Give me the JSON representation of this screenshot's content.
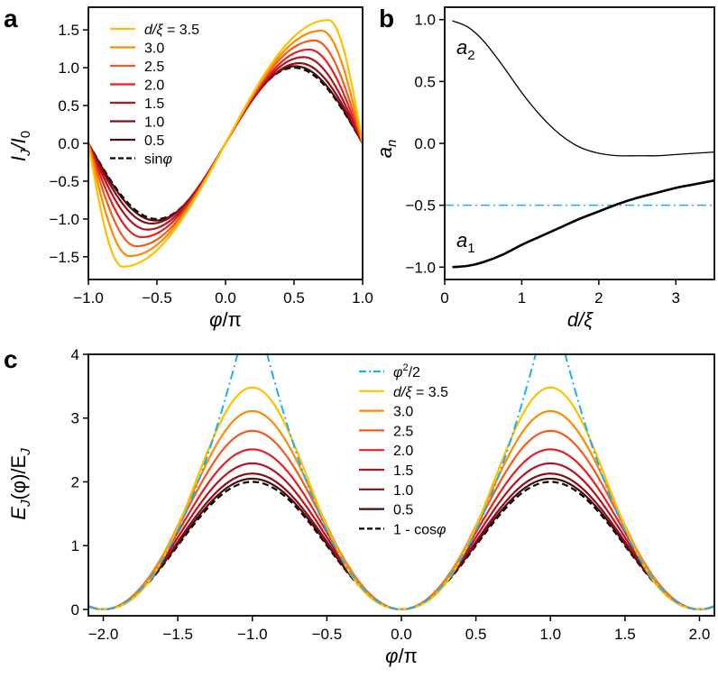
{
  "chart_data": [
    {
      "panel_label": "a",
      "type": "line",
      "xlabel": {
        "main": "φ",
        "rest": "/π"
      },
      "ylabel": {
        "main": "I",
        "sub": "J",
        "mid": "/I",
        "sub2": "0"
      },
      "xlim": [
        -1.0,
        1.0
      ],
      "ylim": [
        -1.8,
        1.8
      ],
      "xticks": [
        "−1.0",
        "−0.5",
        "0.0",
        "0.5",
        "1.0"
      ],
      "yticks": [
        "−1.5",
        "−1.0",
        "−0.5",
        "0.0",
        "0.5",
        "1.0",
        "1.5"
      ],
      "legend": {
        "placement": "upper-left",
        "ratio_label": "d/ξ",
        "ratio_eq": " = 3.5",
        "sin_label": "sinφ"
      },
      "series": [
        {
          "name": "3.5",
          "color": "#ffc000",
          "d": 3.5,
          "peak": 1.63,
          "peak_phase": 0.75
        },
        {
          "name": "3.0",
          "color": "#ff8a00",
          "d": 3.0,
          "peak": 1.49,
          "peak_phase": 0.7
        },
        {
          "name": "2.5",
          "color": "#f25a1e",
          "d": 2.5,
          "peak": 1.36,
          "peak_phase": 0.65
        },
        {
          "name": "2.0",
          "color": "#e3221e",
          "d": 2.0,
          "peak": 1.24,
          "peak_phase": 0.61
        },
        {
          "name": "1.5",
          "color": "#b8121e",
          "d": 1.5,
          "peak": 1.14,
          "peak_phase": 0.57
        },
        {
          "name": "1.0",
          "color": "#8a0d18",
          "d": 1.0,
          "peak": 1.06,
          "peak_phase": 0.54
        },
        {
          "name": "0.5",
          "color": "#4a0a0a",
          "d": 0.5,
          "peak": 1.02,
          "peak_phase": 0.51
        },
        {
          "name": "sinφ",
          "color": "#000000",
          "d": 0.0,
          "peak": 1.0,
          "peak_phase": 0.5,
          "dashed": true
        }
      ]
    },
    {
      "panel_label": "b",
      "type": "line",
      "xlabel": {
        "main": "d",
        "rest": "/ξ"
      },
      "ylabel": {
        "main": "a",
        "sub": "n"
      },
      "xlim": [
        0,
        3.5
      ],
      "ylim": [
        -1.1,
        1.1
      ],
      "xticks": [
        "0",
        "1",
        "2",
        "3"
      ],
      "yticks": [
        "−1.0",
        "−0.5",
        "0.0",
        "0.5",
        "1.0"
      ],
      "reference_line": {
        "y": -0.5,
        "color": "#1ab0f0"
      },
      "series": [
        {
          "name": "a₂",
          "label_main": "a",
          "label_sub": "2",
          "x": [
            0.1,
            0.3,
            0.5,
            0.75,
            1.0,
            1.25,
            1.5,
            1.75,
            2.0,
            2.25,
            2.5,
            2.75,
            3.0,
            3.25,
            3.5
          ],
          "y": [
            0.99,
            0.94,
            0.83,
            0.63,
            0.41,
            0.22,
            0.07,
            -0.03,
            -0.08,
            -0.1,
            -0.1,
            -0.1,
            -0.09,
            -0.08,
            -0.07
          ]
        },
        {
          "name": "a₁",
          "label_main": "a",
          "label_sub": "1",
          "x": [
            0.1,
            0.3,
            0.5,
            0.75,
            1.0,
            1.25,
            1.5,
            1.75,
            2.0,
            2.25,
            2.5,
            2.75,
            3.0,
            3.25,
            3.5
          ],
          "y": [
            -1.0,
            -0.99,
            -0.96,
            -0.9,
            -0.82,
            -0.75,
            -0.68,
            -0.61,
            -0.55,
            -0.49,
            -0.44,
            -0.4,
            -0.36,
            -0.33,
            -0.3
          ]
        }
      ]
    },
    {
      "panel_label": "c",
      "type": "line",
      "xlabel": {
        "main": "φ",
        "rest": "/π"
      },
      "ylabel": {
        "main": "E",
        "sub": "J",
        "mid": "(φ)/E",
        "sub2": "J"
      },
      "xlim": [
        -2.1,
        2.1
      ],
      "ylim": [
        -0.1,
        4.0
      ],
      "xticks": [
        "−2.0",
        "−1.5",
        "−1.0",
        "−0.5",
        "0.0",
        "0.5",
        "1.0",
        "1.5",
        "2.0"
      ],
      "yticks": [
        "0",
        "1",
        "2",
        "3",
        "4"
      ],
      "legend": {
        "placement": "upper-center",
        "parabola_label": "φ²/2",
        "ratio_label": "d/ξ",
        "ratio_eq": " = 3.5",
        "cos_label": "1 - cosφ"
      },
      "series_peaks": [
        3.48,
        3.11,
        2.8,
        2.51,
        2.29,
        2.13,
        2.05,
        2.0
      ],
      "parabola_color": "#1ab0f0"
    }
  ]
}
